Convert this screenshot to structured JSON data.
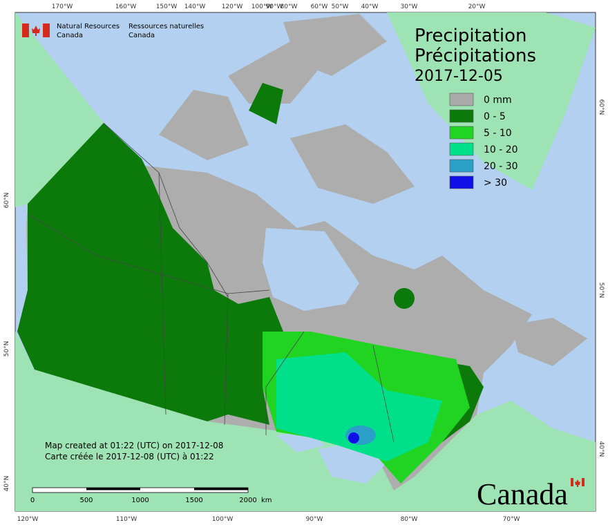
{
  "header": {
    "org_en_1": "Natural Resources",
    "org_en_2": "Canada",
    "org_fr_1": "Ressources naturelles",
    "org_fr_2": "Canada"
  },
  "title": {
    "en": "Precipitation",
    "fr": "Précipitations",
    "date": "2017-12-05"
  },
  "legend": {
    "items": [
      {
        "label": "0 mm",
        "color": "#aaaaaa"
      },
      {
        "label": "0 - 5",
        "color": "#0b7a0b"
      },
      {
        "label": "5 - 10",
        "color": "#22d422"
      },
      {
        "label": "10 - 20",
        "color": "#00e08a"
      },
      {
        "label": "20 - 30",
        "color": "#2a9fc8"
      },
      {
        "label": "> 30",
        "color": "#1010e6"
      }
    ]
  },
  "graticule": {
    "top": [
      "170°W",
      "160°W",
      "150°W",
      "140°W",
      "120°W",
      "100°W",
      "90°W",
      "80°W",
      "60°W",
      "50°W",
      "40°W",
      "30°W",
      "20°W"
    ],
    "bottom": [
      "120°W",
      "110°W",
      "100°W",
      "90°W",
      "80°W",
      "70°W"
    ],
    "left": [
      "60°N",
      "50°N",
      "40°N"
    ],
    "right": [
      "60°N",
      "50°N",
      "40°N"
    ]
  },
  "notes": {
    "en": "Map created at 01:22 (UTC) on 2017-12-08",
    "fr": "Carte créée le 2017-12-08 (UTC) à 01:22"
  },
  "scale_bar": {
    "labels": [
      "0",
      "500",
      "1000",
      "1500",
      "2000"
    ],
    "unit": "km"
  },
  "wordmark": "Canada"
}
